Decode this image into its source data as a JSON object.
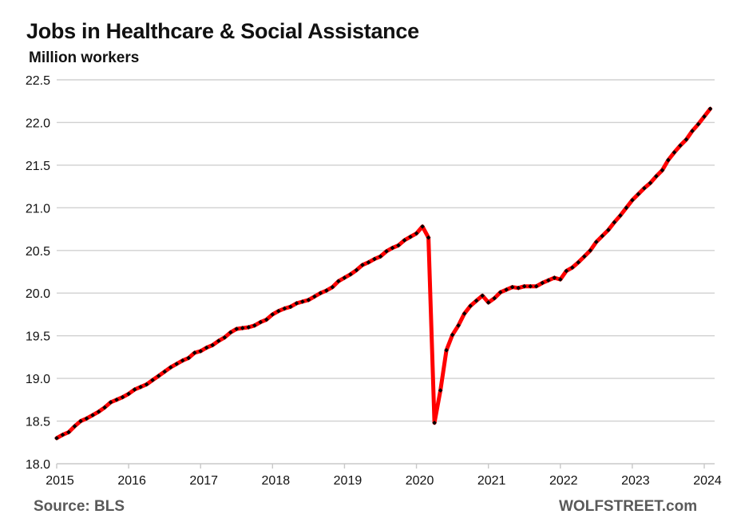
{
  "chart_data": {
    "type": "line",
    "title": "Jobs in Healthcare & Social Assistance",
    "subtitle": "Million workers",
    "source": "Source: BLS",
    "brand": "WOLFSTREET.com",
    "xlabel": "",
    "ylabel": "Million workers",
    "ylim": [
      18.0,
      22.5
    ],
    "yticks": [
      "18.0",
      "18.5",
      "19.0",
      "19.5",
      "20.0",
      "20.5",
      "21.0",
      "21.5",
      "22.0",
      "22.5"
    ],
    "xticks": [
      "2015",
      "2016",
      "2017",
      "2018",
      "2019",
      "2020",
      "2021",
      "2022",
      "2023",
      "2024"
    ],
    "x_start": "2015-01",
    "x_frequency": "monthly",
    "grid": true,
    "legend": "none",
    "colors": {
      "line": "#ff0000",
      "markers": "#000000",
      "grid": "#d0d0d0",
      "text": "#111111",
      "footer": "#595959"
    },
    "series": [
      {
        "name": "Healthcare & Social Assistance jobs",
        "values": [
          18.3,
          18.34,
          18.37,
          18.44,
          18.5,
          18.53,
          18.57,
          18.61,
          18.66,
          18.72,
          18.75,
          18.78,
          18.82,
          18.87,
          18.9,
          18.93,
          18.98,
          19.03,
          19.08,
          19.13,
          19.17,
          19.21,
          19.24,
          19.3,
          19.32,
          19.36,
          19.39,
          19.44,
          19.48,
          19.54,
          19.58,
          19.59,
          19.6,
          19.62,
          19.66,
          19.69,
          19.75,
          19.79,
          19.82,
          19.84,
          19.88,
          19.9,
          19.92,
          19.96,
          20.0,
          20.03,
          20.07,
          20.14,
          20.18,
          20.22,
          20.27,
          20.33,
          20.36,
          20.4,
          20.43,
          20.49,
          20.53,
          20.56,
          20.62,
          20.66,
          20.7,
          20.78,
          20.65,
          18.48,
          18.86,
          19.33,
          19.51,
          19.62,
          19.76,
          19.85,
          19.91,
          19.97,
          19.89,
          19.94,
          20.01,
          20.04,
          20.07,
          20.06,
          20.08,
          20.08,
          20.08,
          20.12,
          20.15,
          20.18,
          20.16,
          20.26,
          20.3,
          20.36,
          20.43,
          20.5,
          20.6,
          20.67,
          20.74,
          20.83,
          20.91,
          21.0,
          21.09,
          21.16,
          21.23,
          21.29,
          21.37,
          21.44,
          21.56,
          21.65,
          21.73,
          21.8,
          21.9,
          21.98,
          22.07,
          22.16
        ]
      }
    ]
  }
}
